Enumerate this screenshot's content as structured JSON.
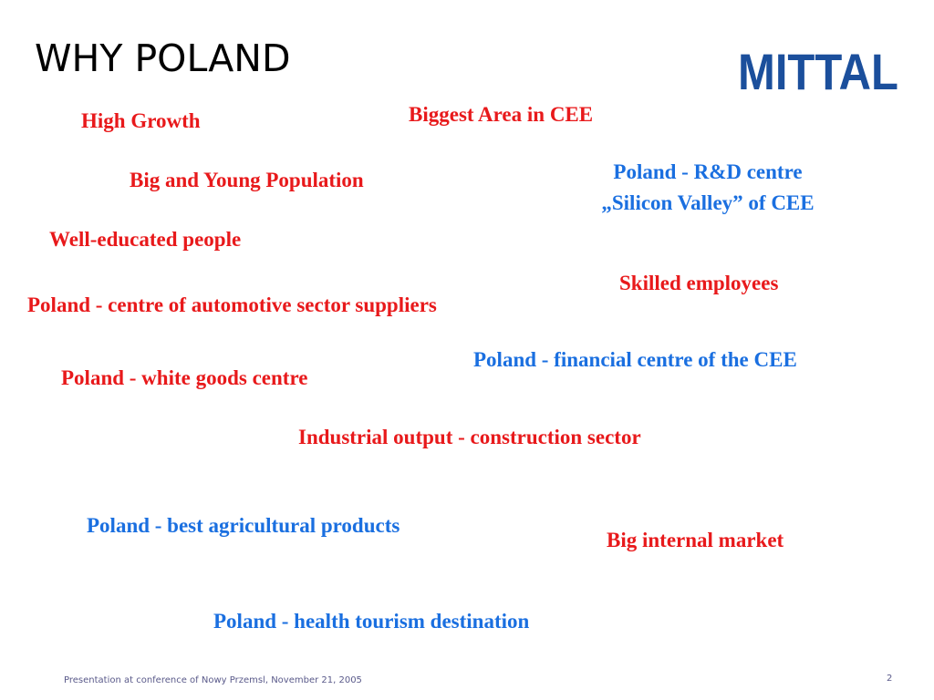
{
  "slide": {
    "title": "WHY POLAND",
    "logo_text": "MITTAL",
    "points": [
      {
        "text": "High Growth",
        "color": "red"
      },
      {
        "text": "Biggest Area in CEE",
        "color": "red"
      },
      {
        "text": "Big and Young Population",
        "color": "red"
      },
      {
        "text": "Poland - R&D centre",
        "color": "blue"
      },
      {
        "text": "„Silicon Valley” of CEE",
        "color": "blue"
      },
      {
        "text": "Well-educated people",
        "color": "red"
      },
      {
        "text": "Skilled employees",
        "color": "red"
      },
      {
        "text": "Poland - centre of automotive sector suppliers",
        "color": "red"
      },
      {
        "text": "Poland - financial centre of the CEE",
        "color": "blue"
      },
      {
        "text": "Poland - white goods centre",
        "color": "red"
      },
      {
        "text": "Industrial output - construction sector",
        "color": "red"
      },
      {
        "text": "Poland - best agricultural products",
        "color": "blue"
      },
      {
        "text": "Big internal market",
        "color": "red"
      },
      {
        "text": "Poland - health tourism destination",
        "color": "blue"
      }
    ]
  },
  "footer": {
    "text": "Presentation at conference of Nowy Przemsl, November 21, 2005",
    "page_number": "2"
  },
  "colors": {
    "red": "#e8191b",
    "blue": "#1a6fe0",
    "logo": "#1b4f9c"
  }
}
